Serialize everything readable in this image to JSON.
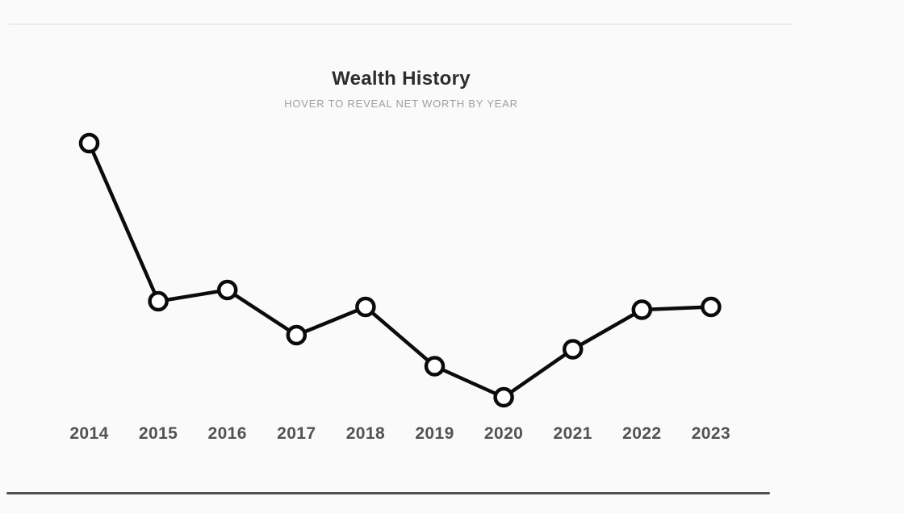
{
  "header": {
    "title": "Wealth History",
    "subtitle": "HOVER TO REVEAL NET WORTH BY YEAR"
  },
  "colors": {
    "background": "#fafafa",
    "chart_line": "#0b0b0b",
    "marker_fill": "#ffffff",
    "marker_stroke": "#0b0b0b",
    "title_text": "#2d2d2d",
    "subtitle_text": "#9e9e9e",
    "year_label_text": "#525252",
    "top_divider": "#ededed",
    "bottom_divider": "#515151"
  },
  "chart_data": {
    "type": "line",
    "title": "Wealth History",
    "subtitle": "HOVER TO REVEAL NET WORTH BY YEAR",
    "categories": [
      "2014",
      "2015",
      "2016",
      "2017",
      "2018",
      "2019",
      "2020",
      "2021",
      "2022",
      "2023"
    ],
    "values": [
      95,
      39,
      43,
      27,
      37,
      16,
      5,
      22,
      36,
      37
    ],
    "xlabel": "",
    "ylabel": "",
    "ylim": [
      0,
      100
    ],
    "value_axis_hidden": true,
    "values_scale": "relative-estimated-from-plot",
    "grid": false,
    "legend": false,
    "marker": "open-circle",
    "layout": {
      "x_start": 110.5,
      "x_step": 85.6,
      "y_base": 510,
      "y_per_unit": 3.5,
      "line_width": 4.5,
      "marker_radius": 10.5,
      "marker_stroke_width": 4.5
    }
  }
}
